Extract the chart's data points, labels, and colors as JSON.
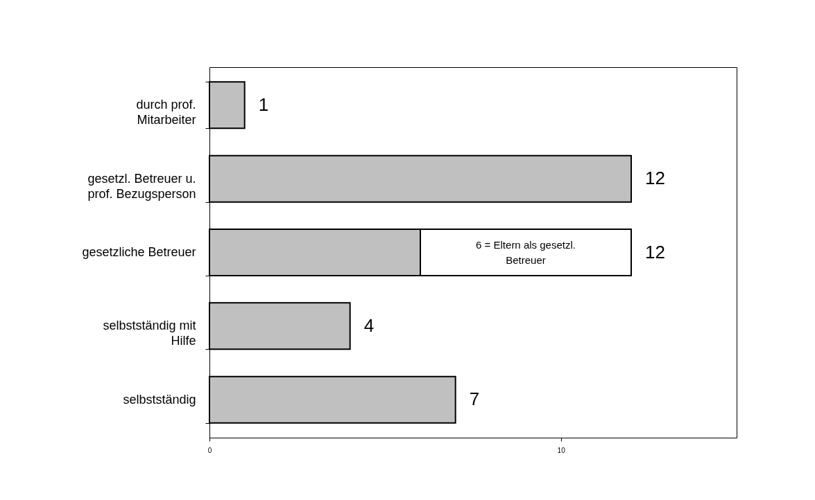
{
  "chart_data": {
    "type": "bar",
    "orientation": "horizontal",
    "stacked": true,
    "categories": [
      "durch prof. Mitarbeiter",
      "gesetzl. Betreuer u. prof. Bezugsperson",
      "gesetzliche Betreuer",
      "selbstständig mit Hilfe",
      "selbstständig"
    ],
    "series": [
      {
        "color": "#c0c0c0",
        "values": [
          1,
          12,
          6,
          4,
          7
        ]
      },
      {
        "color": "#ffffff",
        "values": [
          null,
          null,
          6,
          null,
          null
        ]
      }
    ],
    "totals": [
      "1",
      "12",
      "12",
      "4",
      "7"
    ],
    "annotations": [
      "6  = Eltern als gesetzl. Betreuer"
    ],
    "xlim": [
      0,
      15
    ],
    "xticks": [
      0,
      10
    ],
    "grid": false,
    "legend": false
  }
}
